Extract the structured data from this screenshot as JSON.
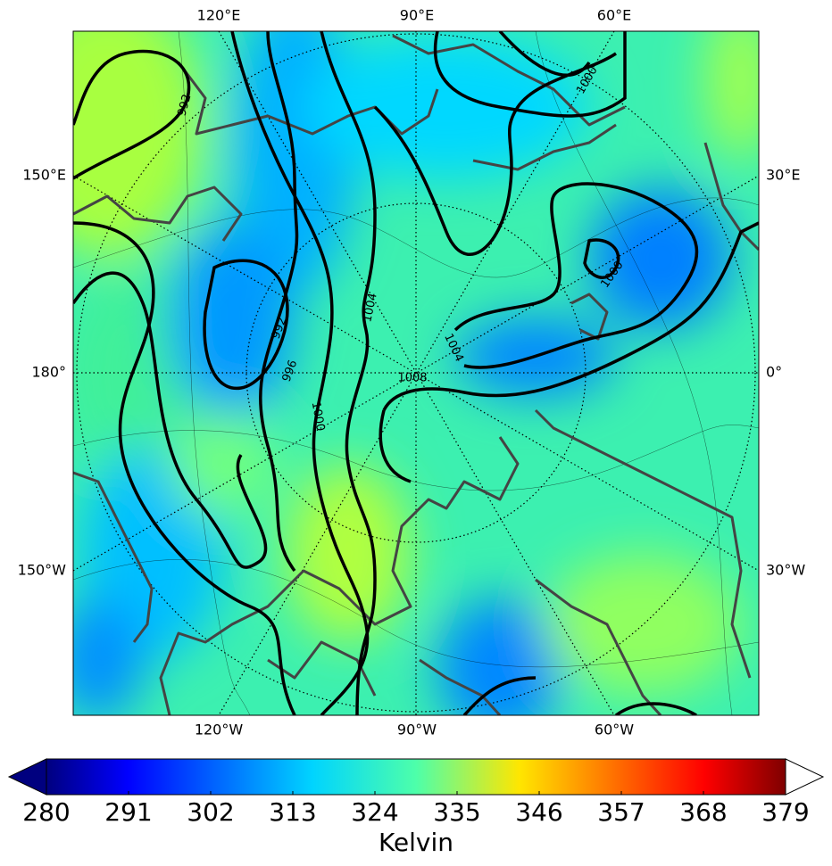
{
  "map": {
    "lon_labels_top": [
      "120°E",
      "90°E",
      "60°E"
    ],
    "lon_labels_bottom": [
      "120°W",
      "90°W",
      "60°W"
    ],
    "lat_labels_left": [
      "150°E",
      "180°",
      "150°W"
    ],
    "lat_labels_right": [
      "30°E",
      "0°",
      "30°W"
    ],
    "contour_labels": [
      992,
      992,
      996,
      1000,
      1004,
      1004,
      1008,
      1000,
      1000
    ]
  },
  "colorbar": {
    "label": "Kelvin",
    "lim": [
      280,
      379
    ],
    "ticks": [
      280,
      291,
      302,
      313,
      324,
      335,
      346,
      357,
      368,
      379
    ]
  }
}
